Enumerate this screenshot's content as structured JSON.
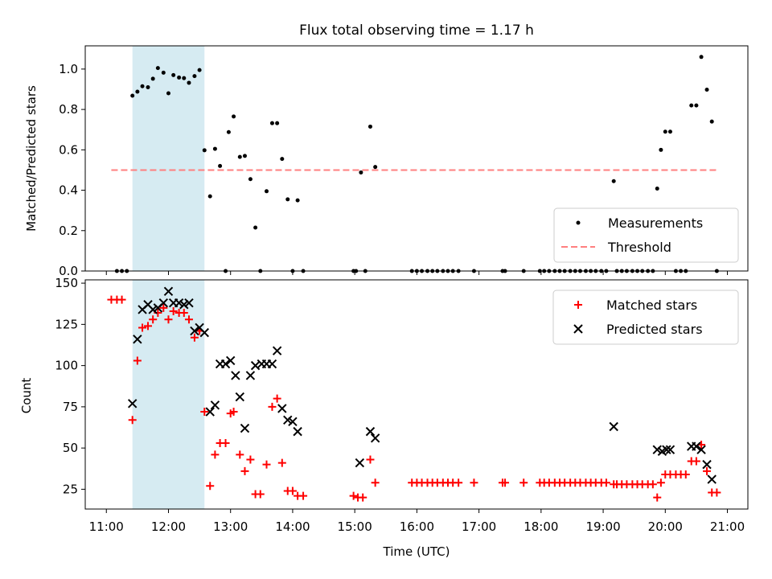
{
  "chart_data": {
    "title": "Flux total observing time = 1.17 h",
    "xlabel": "Time (UTC)",
    "x_unit": "hours UTC",
    "x_range": [
      10.66,
      21.33
    ],
    "x_ticks": [
      11,
      12,
      13,
      14,
      15,
      16,
      17,
      18,
      19,
      20,
      21
    ],
    "x_tick_labels": [
      "11:00",
      "12:00",
      "13:00",
      "14:00",
      "15:00",
      "16:00",
      "17:00",
      "18:00",
      "19:00",
      "20:00",
      "21:00"
    ],
    "highlight_span": {
      "x": [
        11.42,
        12.58
      ],
      "color": "#add8e6"
    },
    "colors": {
      "measurement": "#000000",
      "threshold": "#ff7f7f",
      "matched": "#ff0000",
      "predicted": "#000000",
      "span": "#add8e6"
    },
    "top": {
      "type": "scatter",
      "ylabel": "Matched/Predicted stars",
      "ylim": [
        0,
        1.115
      ],
      "y_ticks": [
        0.0,
        0.2,
        0.4,
        0.6,
        0.8,
        1.0
      ],
      "y_tick_labels": [
        "0.0",
        "0.2",
        "0.4",
        "0.6",
        "0.8",
        "1.0"
      ],
      "threshold": {
        "y": 0.5,
        "x": [
          11.08,
          20.83
        ]
      },
      "legend": {
        "position": "bottom-right",
        "entries": [
          "Measurements",
          "Threshold"
        ]
      },
      "measurements": [
        [
          11.17,
          0.0
        ],
        [
          11.25,
          0.0
        ],
        [
          11.33,
          0.0
        ],
        [
          11.42,
          0.868
        ],
        [
          11.5,
          0.888
        ],
        [
          11.58,
          0.915
        ],
        [
          11.67,
          0.91
        ],
        [
          11.75,
          0.952
        ],
        [
          11.83,
          1.005
        ],
        [
          11.92,
          0.982
        ],
        [
          12.0,
          0.88
        ],
        [
          12.08,
          0.97
        ],
        [
          12.17,
          0.958
        ],
        [
          12.25,
          0.955
        ],
        [
          12.33,
          0.932
        ],
        [
          12.42,
          0.965
        ],
        [
          12.5,
          0.995
        ],
        [
          12.58,
          0.598
        ],
        [
          12.67,
          0.37
        ],
        [
          12.75,
          0.605
        ],
        [
          12.83,
          0.52
        ],
        [
          12.92,
          0.0
        ],
        [
          12.97,
          0.688
        ],
        [
          13.05,
          0.765
        ],
        [
          13.15,
          0.565
        ],
        [
          13.23,
          0.57
        ],
        [
          13.32,
          0.455
        ],
        [
          13.4,
          0.215
        ],
        [
          13.48,
          0.0
        ],
        [
          13.58,
          0.395
        ],
        [
          13.67,
          0.732
        ],
        [
          13.75,
          0.732
        ],
        [
          13.83,
          0.555
        ],
        [
          13.92,
          0.355
        ],
        [
          14.0,
          0.0
        ],
        [
          14.08,
          0.35
        ],
        [
          14.17,
          0.0
        ],
        [
          14.98,
          0.0
        ],
        [
          15.02,
          0.0
        ],
        [
          15.1,
          0.488
        ],
        [
          15.17,
          0.0
        ],
        [
          15.25,
          0.715
        ],
        [
          15.33,
          0.515
        ],
        [
          15.92,
          0.0
        ],
        [
          16.0,
          0.0
        ],
        [
          16.08,
          0.0
        ],
        [
          16.17,
          0.0
        ],
        [
          16.25,
          0.0
        ],
        [
          16.33,
          0.0
        ],
        [
          16.42,
          0.0
        ],
        [
          16.5,
          0.0
        ],
        [
          16.58,
          0.0
        ],
        [
          16.67,
          0.0
        ],
        [
          16.92,
          0.0
        ],
        [
          17.38,
          0.0
        ],
        [
          17.42,
          0.0
        ],
        [
          17.72,
          0.0
        ],
        [
          17.98,
          0.0
        ],
        [
          18.05,
          0.0
        ],
        [
          18.13,
          0.0
        ],
        [
          18.22,
          0.0
        ],
        [
          18.3,
          0.0
        ],
        [
          18.38,
          0.0
        ],
        [
          18.47,
          0.0
        ],
        [
          18.55,
          0.0
        ],
        [
          18.63,
          0.0
        ],
        [
          18.72,
          0.0
        ],
        [
          18.8,
          0.0
        ],
        [
          18.88,
          0.0
        ],
        [
          18.97,
          0.0
        ],
        [
          19.05,
          0.0
        ],
        [
          19.17,
          0.445
        ],
        [
          19.22,
          0.0
        ],
        [
          19.3,
          0.0
        ],
        [
          19.38,
          0.0
        ],
        [
          19.47,
          0.0
        ],
        [
          19.55,
          0.0
        ],
        [
          19.63,
          0.0
        ],
        [
          19.72,
          0.0
        ],
        [
          19.8,
          0.0
        ],
        [
          19.87,
          0.408
        ],
        [
          19.93,
          0.6
        ],
        [
          20.0,
          0.69
        ],
        [
          20.08,
          0.69
        ],
        [
          20.17,
          0.0
        ],
        [
          20.25,
          0.0
        ],
        [
          20.33,
          0.0
        ],
        [
          20.42,
          0.82
        ],
        [
          20.5,
          0.82
        ],
        [
          20.58,
          1.06
        ],
        [
          20.67,
          0.898
        ],
        [
          20.75,
          0.74
        ],
        [
          20.83,
          0.0
        ]
      ]
    },
    "bottom": {
      "type": "scatter",
      "ylabel": "Count",
      "ylim": [
        13,
        152
      ],
      "y_ticks": [
        25,
        50,
        75,
        100,
        125,
        150
      ],
      "y_tick_labels": [
        "25",
        "50",
        "75",
        "100",
        "125",
        "150"
      ],
      "legend": {
        "position": "top-right",
        "entries": [
          "Matched stars",
          "Predicted stars"
        ]
      },
      "matched": [
        [
          11.08,
          140
        ],
        [
          11.17,
          140
        ],
        [
          11.25,
          140
        ],
        [
          11.42,
          67
        ],
        [
          11.5,
          103
        ],
        [
          11.58,
          123
        ],
        [
          11.67,
          124
        ],
        [
          11.75,
          128
        ],
        [
          11.83,
          132
        ],
        [
          11.92,
          135
        ],
        [
          12.0,
          128
        ],
        [
          12.08,
          133
        ],
        [
          12.17,
          132
        ],
        [
          12.25,
          132
        ],
        [
          12.33,
          128
        ],
        [
          12.42,
          117
        ],
        [
          12.5,
          121
        ],
        [
          12.58,
          72
        ],
        [
          12.67,
          27
        ],
        [
          12.75,
          46
        ],
        [
          12.83,
          53
        ],
        [
          12.92,
          53
        ],
        [
          13.0,
          71
        ],
        [
          13.05,
          72
        ],
        [
          13.15,
          46
        ],
        [
          13.23,
          36
        ],
        [
          13.32,
          43
        ],
        [
          13.4,
          22
        ],
        [
          13.48,
          22
        ],
        [
          13.58,
          40
        ],
        [
          13.67,
          75
        ],
        [
          13.75,
          80
        ],
        [
          13.83,
          41
        ],
        [
          13.92,
          24
        ],
        [
          14.0,
          24
        ],
        [
          14.08,
          21
        ],
        [
          14.17,
          21
        ],
        [
          14.98,
          21
        ],
        [
          15.05,
          20
        ],
        [
          15.13,
          20
        ],
        [
          15.25,
          43
        ],
        [
          15.33,
          29
        ],
        [
          15.92,
          29
        ],
        [
          16.0,
          29
        ],
        [
          16.08,
          29
        ],
        [
          16.17,
          29
        ],
        [
          16.25,
          29
        ],
        [
          16.33,
          29
        ],
        [
          16.42,
          29
        ],
        [
          16.5,
          29
        ],
        [
          16.58,
          29
        ],
        [
          16.67,
          29
        ],
        [
          16.92,
          29
        ],
        [
          17.38,
          29
        ],
        [
          17.42,
          29
        ],
        [
          17.72,
          29
        ],
        [
          17.98,
          29
        ],
        [
          18.05,
          29
        ],
        [
          18.13,
          29
        ],
        [
          18.22,
          29
        ],
        [
          18.3,
          29
        ],
        [
          18.38,
          29
        ],
        [
          18.47,
          29
        ],
        [
          18.55,
          29
        ],
        [
          18.63,
          29
        ],
        [
          18.72,
          29
        ],
        [
          18.8,
          29
        ],
        [
          18.88,
          29
        ],
        [
          18.97,
          29
        ],
        [
          19.05,
          29
        ],
        [
          19.17,
          28
        ],
        [
          19.22,
          28
        ],
        [
          19.3,
          28
        ],
        [
          19.38,
          28
        ],
        [
          19.47,
          28
        ],
        [
          19.55,
          28
        ],
        [
          19.63,
          28
        ],
        [
          19.72,
          28
        ],
        [
          19.8,
          28
        ],
        [
          19.87,
          20
        ],
        [
          19.93,
          29
        ],
        [
          20.0,
          34
        ],
        [
          20.08,
          34
        ],
        [
          20.17,
          34
        ],
        [
          20.25,
          34
        ],
        [
          20.33,
          34
        ],
        [
          20.42,
          42
        ],
        [
          20.5,
          42
        ],
        [
          20.58,
          52
        ],
        [
          20.67,
          36
        ],
        [
          20.75,
          23
        ],
        [
          20.83,
          23
        ]
      ],
      "predicted": [
        [
          11.42,
          77
        ],
        [
          11.5,
          116
        ],
        [
          11.58,
          134
        ],
        [
          11.67,
          137
        ],
        [
          11.75,
          134
        ],
        [
          11.83,
          135
        ],
        [
          11.92,
          138
        ],
        [
          12.0,
          145
        ],
        [
          12.08,
          138
        ],
        [
          12.17,
          138
        ],
        [
          12.25,
          137
        ],
        [
          12.33,
          138
        ],
        [
          12.42,
          121
        ],
        [
          12.5,
          123
        ],
        [
          12.58,
          120
        ],
        [
          12.67,
          72
        ],
        [
          12.75,
          76
        ],
        [
          12.83,
          101
        ],
        [
          12.92,
          101
        ],
        [
          13.0,
          103
        ],
        [
          13.08,
          94
        ],
        [
          13.15,
          81
        ],
        [
          13.23,
          62
        ],
        [
          13.32,
          94
        ],
        [
          13.4,
          100
        ],
        [
          13.5,
          101
        ],
        [
          13.58,
          101
        ],
        [
          13.67,
          101
        ],
        [
          13.75,
          109
        ],
        [
          13.83,
          74
        ],
        [
          13.92,
          67
        ],
        [
          14.0,
          66
        ],
        [
          14.08,
          60
        ],
        [
          15.08,
          41
        ],
        [
          15.25,
          60
        ],
        [
          15.33,
          56
        ],
        [
          19.17,
          63
        ],
        [
          19.87,
          49
        ],
        [
          19.95,
          48
        ],
        [
          20.02,
          49
        ],
        [
          20.08,
          49
        ],
        [
          20.42,
          51
        ],
        [
          20.5,
          51
        ],
        [
          20.58,
          49
        ],
        [
          20.67,
          40
        ],
        [
          20.75,
          31
        ]
      ]
    }
  }
}
